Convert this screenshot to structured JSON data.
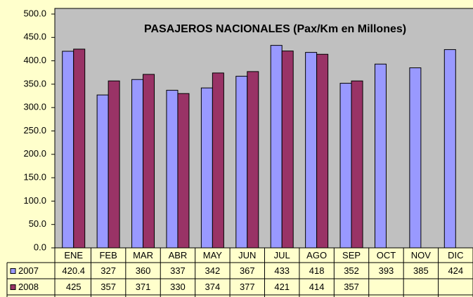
{
  "chart_data": {
    "type": "bar",
    "title": "PASAJEROS NACIONALES (Pax/Km en Millones)",
    "categories": [
      "ENE",
      "FEB",
      "MAR",
      "ABR",
      "MAY",
      "JUN",
      "JUL",
      "AGO",
      "SEP",
      "OCT",
      "NOV",
      "DIC"
    ],
    "series": [
      {
        "name": "2007",
        "color": "#9999ff",
        "values": [
          420.4,
          327,
          360,
          337,
          342,
          367,
          433,
          418,
          352,
          393,
          385,
          424
        ]
      },
      {
        "name": "2008",
        "color": "#993366",
        "values": [
          425,
          357,
          371,
          330,
          374,
          377,
          421,
          414,
          357,
          null,
          null,
          null
        ]
      }
    ],
    "ylim": [
      0,
      500
    ],
    "yticks": [
      {
        "value": 0,
        "label": "0.0"
      },
      {
        "value": 50,
        "label": "50.0"
      },
      {
        "value": 100,
        "label": "100.0"
      },
      {
        "value": 150,
        "label": "150.0"
      },
      {
        "value": 200,
        "label": "200.0"
      },
      {
        "value": 250,
        "label": "250.0"
      },
      {
        "value": 300,
        "label": "300.0"
      },
      {
        "value": 350,
        "label": "350.0"
      },
      {
        "value": 400,
        "label": "400.0"
      },
      {
        "value": 450,
        "label": "450.0"
      },
      {
        "value": 500,
        "label": "500.0"
      }
    ],
    "grid": false
  }
}
